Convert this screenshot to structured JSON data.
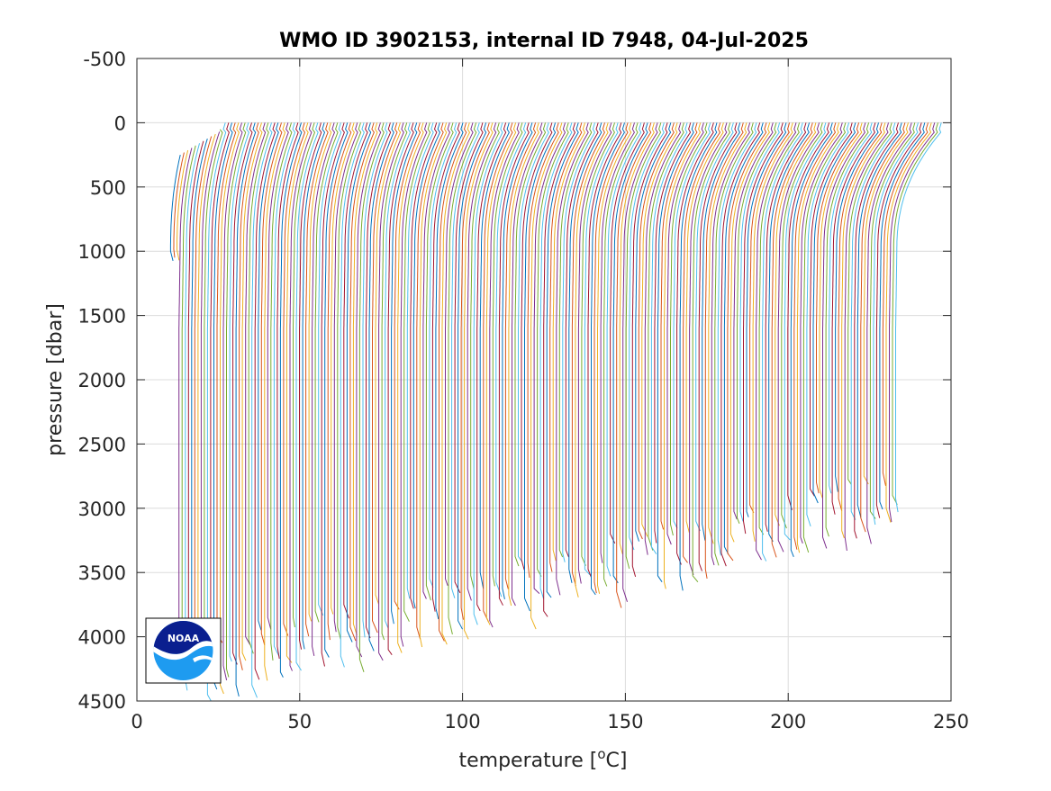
{
  "chart_data": {
    "type": "line",
    "title": "WMO ID 3902153, internal ID 7948, 04-Jul-2025",
    "xlabel": "temperature [",
    "xlabel_sup": "o",
    "xlabel_suffix": "C]",
    "ylabel": "pressure [dbar]",
    "xlim": [
      0,
      250
    ],
    "ylim": [
      -500,
      4500
    ],
    "y_reversed": true,
    "grid": true,
    "x_ticks": [
      0,
      50,
      100,
      150,
      200,
      250
    ],
    "y_ticks": [
      -500,
      0,
      500,
      1000,
      1500,
      2000,
      2500,
      3000,
      3500,
      4000,
      4500
    ],
    "x_tick_labels": [
      "0",
      "50",
      "100",
      "150",
      "200",
      "250"
    ],
    "y_tick_labels": [
      "-500",
      "0",
      "500",
      "1000",
      "1500",
      "2000",
      "2500",
      "3000",
      "3500",
      "4000",
      "4500"
    ],
    "series_description": "Waterfall of temperature profiles, each offset by a constant in x",
    "profile_count": 230,
    "profile_offset": 1,
    "surface_temperature_range": [
      15,
      247
    ],
    "deep_temperature_range": [
      10,
      233
    ],
    "max_pressure_range": [
      1000,
      4450
    ],
    "colors": [
      "#0072BD",
      "#D95319",
      "#EDB120",
      "#7E2F8E",
      "#77AC30",
      "#4DBEEE",
      "#A2142F"
    ]
  },
  "logo": {
    "name": "NOAA",
    "text": "NOAA",
    "colors": {
      "top": "#0a1f8f",
      "bottom": "#1e9bf0",
      "text": "#ffffff"
    }
  }
}
